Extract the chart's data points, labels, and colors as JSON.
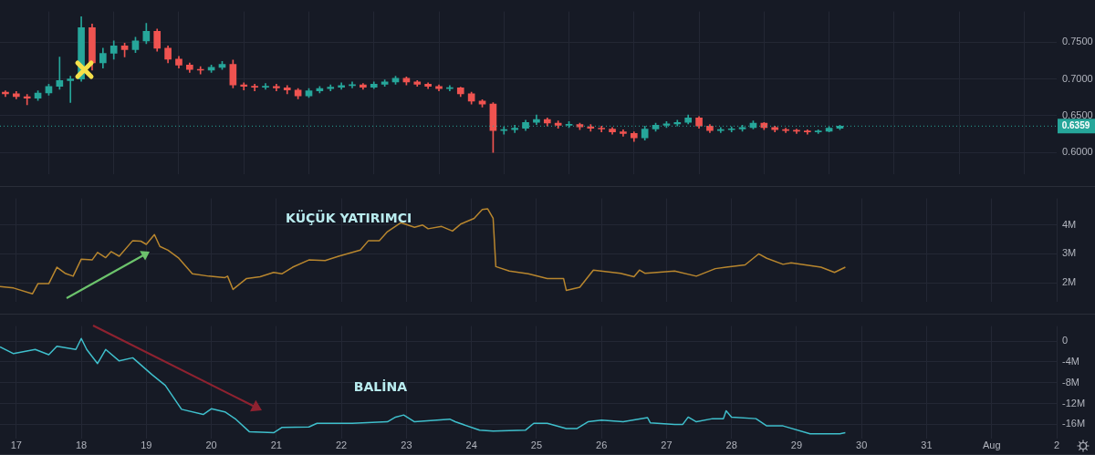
{
  "chart_data": [
    {
      "type": "candlestick",
      "tick_labels": "y",
      "grid": true,
      "x": [
        "--07-16T20:00",
        "--07-17T00:00",
        "--07-17T04:00",
        "--07-17T08:00",
        "--07-17T12:00",
        "--07-17T16:00",
        "--07-17T20:00",
        "--07-18T00:00",
        "--07-18T04:00",
        "--07-18T08:00",
        "--07-18T12:00",
        "--07-18T16:00",
        "--07-18T20:00",
        "--07-19T00:00",
        "--07-19T04:00",
        "--07-19T08:00",
        "--07-19T12:00",
        "--07-19T16:00",
        "--07-19T20:00",
        "--07-20T00:00",
        "--07-20T04:00",
        "--07-20T08:00",
        "--07-20T12:00",
        "--07-20T16:00",
        "--07-20T20:00",
        "--07-21T00:00",
        "--07-21T04:00",
        "--07-21T08:00",
        "--07-21T12:00",
        "--07-21T16:00",
        "--07-21T20:00",
        "--07-22T00:00",
        "--07-22T04:00",
        "--07-22T08:00",
        "--07-22T12:00",
        "--07-22T16:00",
        "--07-22T20:00",
        "--07-23T00:00",
        "--07-23T04:00",
        "--07-23T08:00",
        "--07-23T12:00",
        "--07-23T16:00",
        "--07-23T20:00",
        "--07-24T00:00",
        "--07-24T04:00",
        "--07-24T08:00",
        "--07-24T12:00",
        "--07-24T16:00",
        "--07-24T20:00",
        "--07-25T00:00",
        "--07-25T04:00",
        "--07-25T08:00",
        "--07-25T12:00",
        "--07-25T16:00",
        "--07-25T20:00",
        "--07-26T00:00",
        "--07-26T04:00",
        "--07-26T08:00",
        "--07-26T12:00",
        "--07-26T16:00",
        "--07-26T20:00",
        "--07-27T00:00",
        "--07-27T04:00",
        "--07-27T08:00",
        "--07-27T12:00",
        "--07-27T16:00",
        "--07-27T20:00",
        "--07-28T00:00",
        "--07-28T04:00",
        "--07-28T08:00",
        "--07-28T12:00",
        "--07-28T16:00",
        "--07-28T20:00",
        "--07-29T00:00",
        "--07-29T04:00",
        "--07-29T08:00",
        "--07-29T12:00",
        "--07-29T16:00"
      ],
      "ohlc": [
        [
          0.682,
          0.684,
          0.676,
          0.68
        ],
        [
          0.68,
          0.683,
          0.673,
          0.676
        ],
        [
          0.676,
          0.679,
          0.665,
          0.674
        ],
        [
          0.674,
          0.684,
          0.671,
          0.681
        ],
        [
          0.681,
          0.693,
          0.678,
          0.69
        ],
        [
          0.69,
          0.73,
          0.686,
          0.698
        ],
        [
          0.698,
          0.704,
          0.668,
          0.7
        ],
        [
          0.7,
          0.785,
          0.697,
          0.77
        ],
        [
          0.77,
          0.775,
          0.712,
          0.722
        ],
        [
          0.722,
          0.742,
          0.715,
          0.735
        ],
        [
          0.735,
          0.752,
          0.727,
          0.745
        ],
        [
          0.745,
          0.749,
          0.73,
          0.74
        ],
        [
          0.74,
          0.757,
          0.736,
          0.752
        ],
        [
          0.752,
          0.776,
          0.748,
          0.765
        ],
        [
          0.765,
          0.768,
          0.738,
          0.742
        ],
        [
          0.742,
          0.745,
          0.722,
          0.727
        ],
        [
          0.727,
          0.731,
          0.715,
          0.719
        ],
        [
          0.719,
          0.722,
          0.709,
          0.713
        ],
        [
          0.713,
          0.717,
          0.707,
          0.712
        ],
        [
          0.712,
          0.719,
          0.709,
          0.716
        ],
        [
          0.716,
          0.724,
          0.713,
          0.72
        ],
        [
          0.72,
          0.726,
          0.688,
          0.692
        ],
        [
          0.692,
          0.695,
          0.685,
          0.69
        ],
        [
          0.69,
          0.693,
          0.684,
          0.689
        ],
        [
          0.689,
          0.694,
          0.686,
          0.69
        ],
        [
          0.69,
          0.693,
          0.684,
          0.688
        ],
        [
          0.688,
          0.691,
          0.68,
          0.685
        ],
        [
          0.685,
          0.687,
          0.673,
          0.677
        ],
        [
          0.677,
          0.687,
          0.675,
          0.684
        ],
        [
          0.684,
          0.69,
          0.681,
          0.687
        ],
        [
          0.687,
          0.692,
          0.684,
          0.689
        ],
        [
          0.689,
          0.695,
          0.686,
          0.691
        ],
        [
          0.691,
          0.696,
          0.688,
          0.692
        ],
        [
          0.692,
          0.694,
          0.686,
          0.689
        ],
        [
          0.689,
          0.696,
          0.687,
          0.693
        ],
        [
          0.693,
          0.699,
          0.69,
          0.696
        ],
        [
          0.696,
          0.704,
          0.693,
          0.701
        ],
        [
          0.701,
          0.703,
          0.692,
          0.696
        ],
        [
          0.696,
          0.698,
          0.69,
          0.693
        ],
        [
          0.693,
          0.695,
          0.687,
          0.69
        ],
        [
          0.69,
          0.692,
          0.684,
          0.687
        ],
        [
          0.687,
          0.691,
          0.684,
          0.688
        ],
        [
          0.688,
          0.689,
          0.676,
          0.68
        ],
        [
          0.68,
          0.682,
          0.666,
          0.67
        ],
        [
          0.67,
          0.672,
          0.662,
          0.666
        ],
        [
          0.666,
          0.668,
          0.6,
          0.63
        ],
        [
          0.63,
          0.635,
          0.625,
          0.631
        ],
        [
          0.631,
          0.637,
          0.627,
          0.633
        ],
        [
          0.633,
          0.644,
          0.63,
          0.641
        ],
        [
          0.641,
          0.651,
          0.638,
          0.645
        ],
        [
          0.645,
          0.647,
          0.636,
          0.64
        ],
        [
          0.64,
          0.643,
          0.633,
          0.637
        ],
        [
          0.637,
          0.642,
          0.634,
          0.638
        ],
        [
          0.638,
          0.64,
          0.631,
          0.635
        ],
        [
          0.635,
          0.638,
          0.629,
          0.633
        ],
        [
          0.633,
          0.636,
          0.628,
          0.632
        ],
        [
          0.632,
          0.634,
          0.625,
          0.628
        ],
        [
          0.628,
          0.631,
          0.622,
          0.626
        ],
        [
          0.626,
          0.628,
          0.615,
          0.62
        ],
        [
          0.62,
          0.636,
          0.617,
          0.632
        ],
        [
          0.632,
          0.64,
          0.629,
          0.637
        ],
        [
          0.637,
          0.642,
          0.634,
          0.639
        ],
        [
          0.639,
          0.644,
          0.636,
          0.641
        ],
        [
          0.641,
          0.651,
          0.639,
          0.647
        ],
        [
          0.647,
          0.649,
          0.633,
          0.636
        ],
        [
          0.636,
          0.638,
          0.627,
          0.63
        ],
        [
          0.63,
          0.634,
          0.627,
          0.631
        ],
        [
          0.631,
          0.635,
          0.628,
          0.632
        ],
        [
          0.632,
          0.637,
          0.629,
          0.634
        ],
        [
          0.634,
          0.643,
          0.632,
          0.64
        ],
        [
          0.64,
          0.641,
          0.631,
          0.634
        ],
        [
          0.634,
          0.636,
          0.628,
          0.631
        ],
        [
          0.631,
          0.633,
          0.627,
          0.63
        ],
        [
          0.63,
          0.632,
          0.626,
          0.629
        ],
        [
          0.629,
          0.631,
          0.625,
          0.628
        ],
        [
          0.628,
          0.631,
          0.626,
          0.629
        ],
        [
          0.629,
          0.635,
          0.628,
          0.633
        ],
        [
          0.633,
          0.637,
          0.631,
          0.6359
        ]
      ],
      "colors": [
        "#ef5350",
        "#ef5350",
        "#ef5350",
        "#26a69a",
        "#26a69a",
        "#26a69a",
        "#26a69a",
        "#26a69a",
        "#ef5350",
        "#26a69a",
        "#26a69a",
        "#ef5350",
        "#26a69a",
        "#26a69a",
        "#ef5350",
        "#ef5350",
        "#ef5350",
        "#ef5350",
        "#ef5350",
        "#26a69a",
        "#26a69a",
        "#ef5350",
        "#ef5350",
        "#ef5350",
        "#26a69a",
        "#ef5350",
        "#ef5350",
        "#ef5350",
        "#26a69a",
        "#26a69a",
        "#26a69a",
        "#26a69a",
        "#26a69a",
        "#ef5350",
        "#26a69a",
        "#26a69a",
        "#26a69a",
        "#ef5350",
        "#ef5350",
        "#ef5350",
        "#ef5350",
        "#26a69a",
        "#ef5350",
        "#ef5350",
        "#ef5350",
        "#ef5350",
        "#26a69a",
        "#26a69a",
        "#26a69a",
        "#26a69a",
        "#ef5350",
        "#ef5350",
        "#26a69a",
        "#ef5350",
        "#ef5350",
        "#ef5350",
        "#ef5350",
        "#ef5350",
        "#ef5350",
        "#26a69a",
        "#26a69a",
        "#26a69a",
        "#26a69a",
        "#26a69a",
        "#ef5350",
        "#ef5350",
        "#26a69a",
        "#26a69a",
        "#26a69a",
        "#26a69a",
        "#ef5350",
        "#ef5350",
        "#ef5350",
        "#ef5350",
        "#ef5350",
        "#26a69a",
        "#26a69a",
        "#26a69a"
      ],
      "xlim": [
        "--07-16T18:00",
        "--08-02T00:00"
      ],
      "xticks": [
        {
          "value": "--07-17",
          "label": null
        },
        {
          "value": "--07-18",
          "label": null
        },
        {
          "value": "--07-19",
          "label": null
        },
        {
          "value": "--07-20",
          "label": null
        },
        {
          "value": "--07-21",
          "label": null
        },
        {
          "value": "--07-22",
          "label": null
        },
        {
          "value": "--07-23",
          "label": null
        },
        {
          "value": "--07-24",
          "label": null
        },
        {
          "value": "--07-25",
          "label": null
        },
        {
          "value": "--07-26",
          "label": null
        },
        {
          "value": "--07-27",
          "label": null
        },
        {
          "value": "--07-28",
          "label": null
        },
        {
          "value": "--07-29",
          "label": null
        },
        {
          "value": "--07-30",
          "label": null
        },
        {
          "value": "--07-31",
          "label": null
        },
        {
          "value": "--08-01",
          "label": null
        },
        {
          "value": "--08-02",
          "label": null
        }
      ],
      "ylim": [
        0.57,
        0.792
      ],
      "yticks": [
        {
          "value": 0.6,
          "label": "0.6000"
        },
        {
          "value": 0.65,
          "label": "0.6500"
        },
        {
          "value": 0.7,
          "label": "0.7000"
        },
        {
          "value": 0.75,
          "label": "0.7500"
        }
      ],
      "ref_lines": [
        {
          "axis": "y",
          "value": 0.6359,
          "label": "0.6359",
          "color": "#26a69a",
          "line_style": "dotted"
        }
      ]
    },
    {
      "type": "line",
      "tick_labels": "y",
      "grid": true,
      "annotations": [
        "KÜÇÜK YATIRIMCI"
      ],
      "series": [
        {
          "color": "#b8862e",
          "x": [
            "--07-16T18:00",
            "--07-16T23:00",
            "--07-17T06:00",
            "--07-17T08:00",
            "--07-17T12:00",
            "--07-17T15:00",
            "--07-17T18:00",
            "--07-17T21:00",
            "--07-18T00:00",
            "--07-18T04:00",
            "--07-18T06:00",
            "--07-18T09:00",
            "--07-18T11:00",
            "--07-18T14:00",
            "--07-18T19:00",
            "--07-18T22:00",
            "--07-19T00:00",
            "--07-19T03:00",
            "--07-19T05:00",
            "--07-19T08:00",
            "--07-19T12:00",
            "--07-19T17:00",
            "--07-19T23:00",
            "--07-20T05:00",
            "--07-20T06:00",
            "--07-20T08:00",
            "--07-20T13:00",
            "--07-20T18:00",
            "--07-20T23:00",
            "--07-21T02:00",
            "--07-21T06:00",
            "--07-21T12:00",
            "--07-21T18:00",
            "--07-21T23:00",
            "--07-22T07:00",
            "--07-22T10:00",
            "--07-22T14:00",
            "--07-22T17:00",
            "--07-22T22:00",
            "--07-23T03:00",
            "--07-23T06:00",
            "--07-23T08:00",
            "--07-23T13:00",
            "--07-23T17:00",
            "--07-23T20:00",
            "--07-24T01:00",
            "--07-24T04:00",
            "--07-24T06:00",
            "--07-24T08:00",
            "--07-24T09:00",
            "--07-24T14:00",
            "--07-24T21:00",
            "--07-25T04:00",
            "--07-25T10:00",
            "--07-25T11:00",
            "--07-25T16:00",
            "--07-25T21:00",
            "--07-26T07:00",
            "--07-26T12:00",
            "--07-26T14:00",
            "--07-26T16:00",
            "--07-27T03:00",
            "--07-27T11:00",
            "--07-27T18:00",
            "--07-27T22:00",
            "--07-28T05:00",
            "--07-28T10:00",
            "--07-28T13:00",
            "--07-28T19:00",
            "--07-28T22:00",
            "--07-29T09:00",
            "--07-29T14:00",
            "--07-29T18:00"
          ],
          "values": [
            1870000,
            1820000,
            1620000,
            1970000,
            1970000,
            2540000,
            2330000,
            2230000,
            2820000,
            2790000,
            3050000,
            2870000,
            3080000,
            2920000,
            3460000,
            3440000,
            3330000,
            3670000,
            3260000,
            3130000,
            2850000,
            2310000,
            2230000,
            2180000,
            2230000,
            1770000,
            2150000,
            2210000,
            2360000,
            2310000,
            2540000,
            2790000,
            2770000,
            2920000,
            3130000,
            3460000,
            3460000,
            3770000,
            4080000,
            3920000,
            4000000,
            3870000,
            3950000,
            3790000,
            4030000,
            4230000,
            4540000,
            4560000,
            4230000,
            2560000,
            2410000,
            2310000,
            2150000,
            2150000,
            1740000,
            1850000,
            2440000,
            2330000,
            2210000,
            2440000,
            2330000,
            2410000,
            2230000,
            2490000,
            2540000,
            2620000,
            3000000,
            2850000,
            2640000,
            2690000,
            2540000,
            2360000,
            2540000
          ]
        }
      ],
      "xlim": [
        "--07-16T18:00",
        "--08-02T00:00"
      ],
      "xticks": [
        {
          "value": "--07-17",
          "label": null
        },
        {
          "value": "--07-18",
          "label": null
        },
        {
          "value": "--07-19",
          "label": null
        },
        {
          "value": "--07-20",
          "label": null
        },
        {
          "value": "--07-21",
          "label": null
        },
        {
          "value": "--07-22",
          "label": null
        },
        {
          "value": "--07-23",
          "label": null
        },
        {
          "value": "--07-24",
          "label": null
        },
        {
          "value": "--07-25",
          "label": null
        },
        {
          "value": "--07-26",
          "label": null
        },
        {
          "value": "--07-27",
          "label": null
        },
        {
          "value": "--07-28",
          "label": null
        },
        {
          "value": "--07-29",
          "label": null
        },
        {
          "value": "--07-30",
          "label": null
        },
        {
          "value": "--07-31",
          "label": null
        },
        {
          "value": "--08-01",
          "label": null
        },
        {
          "value": "--08-02",
          "label": null
        }
      ],
      "ylim": [
        1330000,
        4920000
      ],
      "yticks": [
        {
          "value": 2000000,
          "label": "2M"
        },
        {
          "value": 3000000,
          "label": "3M"
        },
        {
          "value": 4000000,
          "label": "4M"
        }
      ]
    },
    {
      "type": "line",
      "grid": true,
      "annotations": [
        "BALİNA"
      ],
      "series": [
        {
          "color": "#3fbfcc",
          "x": [
            "--07-16T18:00",
            "--07-16T23:00",
            "--07-17T07:00",
            "--07-17T12:00",
            "--07-17T15:00",
            "--07-17T22:00",
            "--07-18T00:00",
            "--07-18T02:00",
            "--07-18T06:00",
            "--07-18T09:00",
            "--07-18T14:00",
            "--07-18T19:00",
            "--07-19T02:00",
            "--07-19T07:00",
            "--07-19T13:00",
            "--07-19T21:00",
            "--07-20T00:00",
            "--07-20T05:00",
            "--07-20T09:00",
            "--07-20T14:00",
            "--07-20T23:00",
            "--07-21T02:00",
            "--07-21T12:00",
            "--07-21T15:00",
            "--07-22T04:00",
            "--07-22T17:00",
            "--07-22T20:00",
            "--07-22T23:00",
            "--07-23T03:00",
            "--07-23T16:00",
            "--07-23T18:00",
            "--07-24T03:00",
            "--07-24T08:00",
            "--07-24T20:00",
            "--07-24T23:00",
            "--07-25T04:00",
            "--07-25T11:00",
            "--07-25T15:00",
            "--07-25T19:00",
            "--07-26T00:00",
            "--07-26T08:00",
            "--07-26T17:00",
            "--07-26T18:00",
            "--07-27T03:00",
            "--07-27T06:00",
            "--07-27T08:00",
            "--07-27T11:00",
            "--07-27T17:00",
            "--07-27T21:00",
            "--07-27T22:00",
            "--07-28T00:00",
            "--07-28T09:00",
            "--07-28T13:00",
            "--07-28T19:00",
            "--07-29T05:00",
            "--07-29T16:00",
            "--07-29T18:00"
          ],
          "values": [
            -1100000,
            -2400000,
            -1600000,
            -2600000,
            -1000000,
            -1600000,
            500000,
            -1600000,
            -4300000,
            -1600000,
            -3800000,
            -3200000,
            -6400000,
            -8500000,
            -13100000,
            -14100000,
            -13000000,
            -13600000,
            -15000000,
            -17400000,
            -17600000,
            -16600000,
            -16500000,
            -15800000,
            -15800000,
            -15500000,
            -14600000,
            -14200000,
            -15500000,
            -15000000,
            -15500000,
            -17100000,
            -17300000,
            -17100000,
            -15800000,
            -15800000,
            -16800000,
            -16800000,
            -15500000,
            -15200000,
            -15500000,
            -14700000,
            -15700000,
            -16000000,
            -16000000,
            -14600000,
            -15500000,
            -14900000,
            -14900000,
            -13400000,
            -14600000,
            -14900000,
            -16300000,
            -16300000,
            -17800000,
            -17800000,
            -17600000
          ]
        }
      ],
      "xlim": [
        "--07-16T18:00",
        "--08-02T00:00"
      ],
      "xticks": [
        {
          "value": "--07-17",
          "label": "17"
        },
        {
          "value": "--07-18",
          "label": "18"
        },
        {
          "value": "--07-19",
          "label": "19"
        },
        {
          "value": "--07-20",
          "label": "20"
        },
        {
          "value": "--07-21",
          "label": "21"
        },
        {
          "value": "--07-22",
          "label": "22"
        },
        {
          "value": "--07-23",
          "label": "23"
        },
        {
          "value": "--07-24",
          "label": "24"
        },
        {
          "value": "--07-25",
          "label": "25"
        },
        {
          "value": "--07-26",
          "label": "26"
        },
        {
          "value": "--07-27",
          "label": "27"
        },
        {
          "value": "--07-28",
          "label": "28"
        },
        {
          "value": "--07-29",
          "label": "29"
        },
        {
          "value": "--07-30",
          "label": "30"
        },
        {
          "value": "--07-31",
          "label": "31"
        },
        {
          "value": "--08-01",
          "label": "Aug"
        },
        {
          "value": "--08-02",
          "label": "2"
        }
      ],
      "ylim": [
        -18700000,
        2900000
      ],
      "yticks": [
        {
          "value": -16000000,
          "label": "-16M"
        },
        {
          "value": -12000000,
          "label": "-12M"
        },
        {
          "value": -8000000,
          "label": "-8M"
        },
        {
          "value": -4000000,
          "label": "-4M"
        },
        0
      ]
    }
  ]
}
